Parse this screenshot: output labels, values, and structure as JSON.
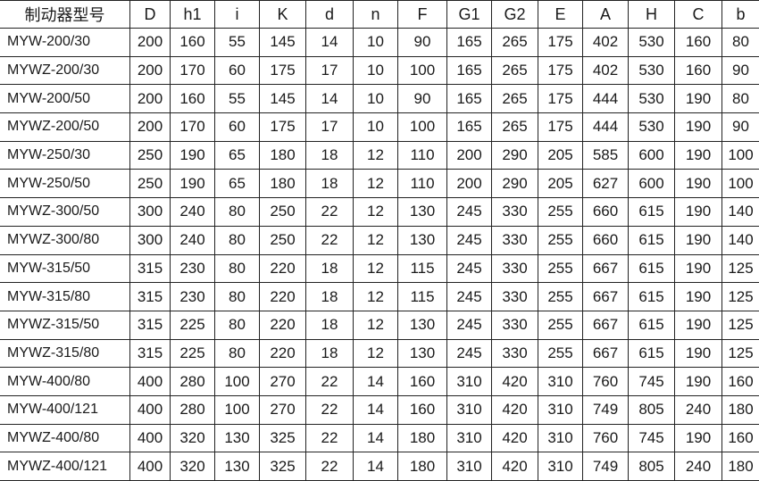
{
  "table": {
    "headers": [
      "制动器型号",
      "D",
      "h1",
      "i",
      "K",
      "d",
      "n",
      "F",
      "G1",
      "G2",
      "E",
      "A",
      "H",
      "C",
      "b"
    ],
    "rows": [
      [
        "MYW-200/30",
        "200",
        "160",
        "55",
        "145",
        "14",
        "10",
        "90",
        "165",
        "265",
        "175",
        "402",
        "530",
        "160",
        "80"
      ],
      [
        "MYWZ-200/30",
        "200",
        "170",
        "60",
        "175",
        "17",
        "10",
        "100",
        "165",
        "265",
        "175",
        "402",
        "530",
        "160",
        "90"
      ],
      [
        "MYW-200/50",
        "200",
        "160",
        "55",
        "145",
        "14",
        "10",
        "90",
        "165",
        "265",
        "175",
        "444",
        "530",
        "190",
        "80"
      ],
      [
        "MYWZ-200/50",
        "200",
        "170",
        "60",
        "175",
        "17",
        "10",
        "100",
        "165",
        "265",
        "175",
        "444",
        "530",
        "190",
        "90"
      ],
      [
        "MYW-250/30",
        "250",
        "190",
        "65",
        "180",
        "18",
        "12",
        "110",
        "200",
        "290",
        "205",
        "585",
        "600",
        "190",
        "100"
      ],
      [
        "MYW-250/50",
        "250",
        "190",
        "65",
        "180",
        "18",
        "12",
        "110",
        "200",
        "290",
        "205",
        "627",
        "600",
        "190",
        "100"
      ],
      [
        "MYWZ-300/50",
        "300",
        "240",
        "80",
        "250",
        "22",
        "12",
        "130",
        "245",
        "330",
        "255",
        "660",
        "615",
        "190",
        "140"
      ],
      [
        "MYWZ-300/80",
        "300",
        "240",
        "80",
        "250",
        "22",
        "12",
        "130",
        "245",
        "330",
        "255",
        "660",
        "615",
        "190",
        "140"
      ],
      [
        "MYW-315/50",
        "315",
        "230",
        "80",
        "220",
        "18",
        "12",
        "115",
        "245",
        "330",
        "255",
        "667",
        "615",
        "190",
        "125"
      ],
      [
        "MYW-315/80",
        "315",
        "230",
        "80",
        "220",
        "18",
        "12",
        "115",
        "245",
        "330",
        "255",
        "667",
        "615",
        "190",
        "125"
      ],
      [
        "MYWZ-315/50",
        "315",
        "225",
        "80",
        "220",
        "18",
        "12",
        "130",
        "245",
        "330",
        "255",
        "667",
        "615",
        "190",
        "125"
      ],
      [
        "MYWZ-315/80",
        "315",
        "225",
        "80",
        "220",
        "18",
        "12",
        "130",
        "245",
        "330",
        "255",
        "667",
        "615",
        "190",
        "125"
      ],
      [
        "MYW-400/80",
        "400",
        "280",
        "100",
        "270",
        "22",
        "14",
        "160",
        "310",
        "420",
        "310",
        "760",
        "745",
        "190",
        "160"
      ],
      [
        "MYW-400/121",
        "400",
        "280",
        "100",
        "270",
        "22",
        "14",
        "160",
        "310",
        "420",
        "310",
        "749",
        "805",
        "240",
        "180"
      ],
      [
        "MYWZ-400/80",
        "400",
        "320",
        "130",
        "325",
        "22",
        "14",
        "180",
        "310",
        "420",
        "310",
        "760",
        "745",
        "190",
        "160"
      ],
      [
        "MYWZ-400/121",
        "400",
        "320",
        "130",
        "325",
        "22",
        "14",
        "180",
        "310",
        "420",
        "310",
        "749",
        "805",
        "240",
        "180"
      ]
    ]
  }
}
